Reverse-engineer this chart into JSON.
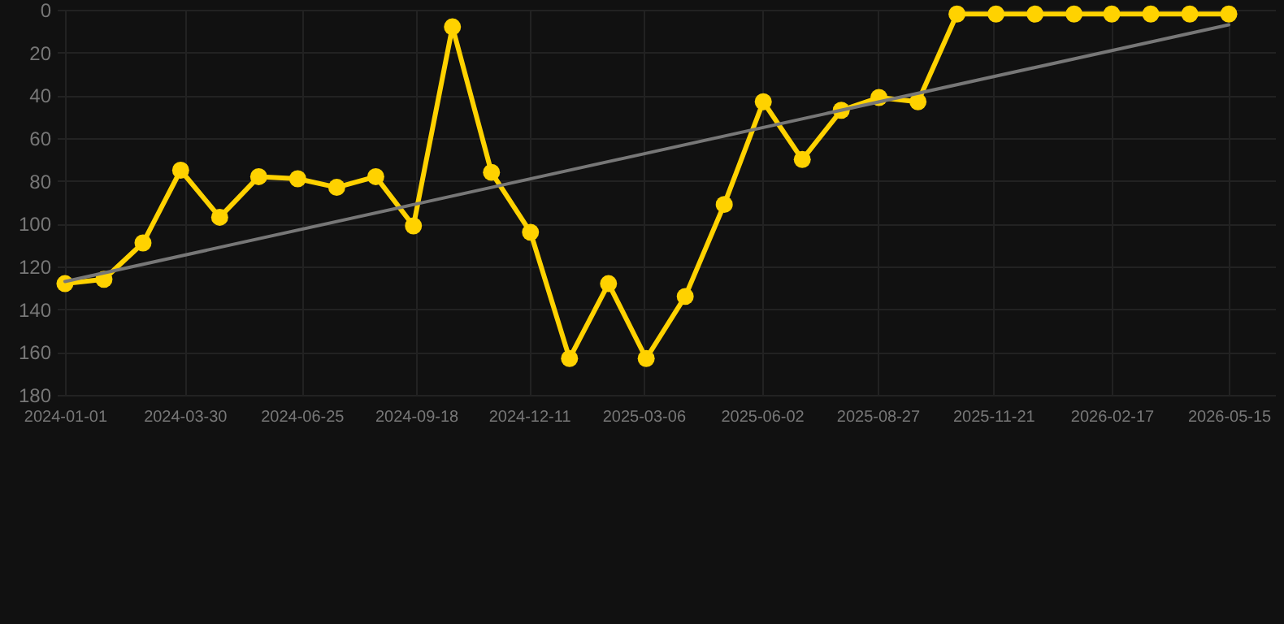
{
  "chart_data": {
    "type": "line",
    "x": [
      "2024-01-01",
      "2024-01-30",
      "2024-02-28",
      "2024-03-27",
      "2024-04-25",
      "2024-05-24",
      "2024-06-22",
      "2024-07-21",
      "2024-08-19",
      "2024-09-16",
      "2024-10-15",
      "2024-11-13",
      "2024-12-12",
      "2025-01-10",
      "2025-02-08",
      "2025-03-08",
      "2025-04-06",
      "2025-05-05",
      "2025-06-03",
      "2025-07-02",
      "2025-07-31",
      "2025-08-28",
      "2025-09-26",
      "2025-10-25",
      "2025-11-23",
      "2025-12-22",
      "2026-01-20",
      "2026-02-17",
      "2026-03-18",
      "2026-04-16",
      "2026-05-15"
    ],
    "series": [
      {
        "color": "#ffd200",
        "values": [
          128,
          126,
          109,
          75,
          97,
          78,
          79,
          83,
          78,
          101,
          8,
          76,
          104,
          163,
          128,
          163,
          134,
          91,
          43,
          70,
          47,
          41,
          43,
          2,
          2,
          2,
          2,
          2,
          2,
          2,
          2
        ]
      },
      {
        "type": "line",
        "color": "#777777",
        "marker": "none",
        "x": [
          "2024-01-01",
          "2026-05-15"
        ],
        "values": [
          127,
          7
        ]
      }
    ],
    "xlim": [
      "2023-12-26",
      "2026-06-19"
    ],
    "xticks": [
      "2024-01-01",
      "2024-03-30",
      "2024-06-25",
      "2024-09-18",
      "2024-12-11",
      "2025-03-06",
      "2025-06-02",
      "2025-08-27",
      "2025-11-21",
      "2026-02-17",
      "2026-05-15"
    ],
    "ylim": [
      180,
      0
    ],
    "yticks": [
      0,
      20,
      40,
      60,
      80,
      100,
      120,
      140,
      160,
      180
    ],
    "grid": true,
    "marker": "circle",
    "line_style": "solid"
  }
}
